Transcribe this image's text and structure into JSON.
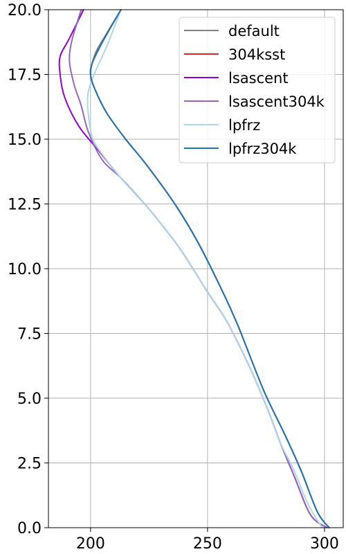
{
  "chart_data": {
    "type": "line",
    "title": "",
    "xlabel": "",
    "ylabel": "",
    "xlim": [
      182,
      308
    ],
    "ylim": [
      0,
      20
    ],
    "xticks": [
      200,
      250,
      300
    ],
    "yticks": [
      0.0,
      2.5,
      5.0,
      7.5,
      10.0,
      12.5,
      15.0,
      17.5,
      20.0
    ],
    "xtick_labels": [
      "200",
      "250",
      "300"
    ],
    "ytick_labels": [
      "0.0",
      "2.5",
      "5.0",
      "7.5",
      "10.0",
      "12.5",
      "15.0",
      "17.5",
      "20.0"
    ],
    "grid": true,
    "legend_position": "top-right",
    "series": [
      {
        "name": "default",
        "color": "#808080",
        "points": [
          [
            302,
            0
          ],
          [
            297,
            0.6
          ],
          [
            290,
            2.2
          ],
          [
            283,
            3.6
          ],
          [
            274,
            5.3
          ],
          [
            263,
            7.8
          ],
          [
            256,
            9.2
          ],
          [
            246,
            11.0
          ],
          [
            236,
            12.5
          ],
          [
            224,
            14.0
          ],
          [
            215,
            15.0
          ],
          [
            207,
            16.0
          ],
          [
            202,
            16.9
          ],
          [
            200,
            17.5
          ],
          [
            202,
            18.3
          ],
          [
            207,
            19.1
          ],
          [
            213,
            20.0
          ]
        ]
      },
      {
        "name": "304ksst",
        "color": "#d62728",
        "points": [
          [
            302,
            0
          ],
          [
            297,
            0.6
          ],
          [
            290,
            2.2
          ],
          [
            283,
            3.6
          ],
          [
            274,
            5.3
          ],
          [
            263,
            7.8
          ],
          [
            256,
            9.2
          ],
          [
            246,
            11.0
          ],
          [
            236,
            12.5
          ],
          [
            224,
            14.0
          ],
          [
            215,
            15.0
          ],
          [
            207,
            16.0
          ],
          [
            202,
            16.9
          ],
          [
            200,
            17.5
          ],
          [
            201,
            18.0
          ],
          [
            206,
            18.9
          ],
          [
            213,
            20.0
          ]
        ]
      },
      {
        "name": "lsascent",
        "color": "#9400D3",
        "points": [
          [
            301,
            0
          ],
          [
            294,
            0.5
          ],
          [
            287,
            2.0
          ],
          [
            281,
            3.3
          ],
          [
            276,
            4.5
          ],
          [
            268,
            6.2
          ],
          [
            258,
            8.0
          ],
          [
            250,
            9.1
          ],
          [
            238,
            10.8
          ],
          [
            225,
            12.3
          ],
          [
            213,
            13.5
          ],
          [
            204,
            14.5
          ],
          [
            195,
            15.5
          ],
          [
            189,
            16.6
          ],
          [
            187,
            17.5
          ],
          [
            187,
            18.2
          ],
          [
            191,
            18.9
          ],
          [
            197,
            20.0
          ]
        ]
      },
      {
        "name": "lsascent304k",
        "color": "#9467bd",
        "points": [
          [
            301,
            0
          ],
          [
            294,
            0.5
          ],
          [
            287,
            2.0
          ],
          [
            281,
            3.3
          ],
          [
            276,
            4.5
          ],
          [
            268,
            6.2
          ],
          [
            258,
            8.0
          ],
          [
            250,
            9.1
          ],
          [
            238,
            10.8
          ],
          [
            225,
            12.3
          ],
          [
            213,
            13.5
          ],
          [
            205,
            14.2
          ],
          [
            199,
            15.3
          ],
          [
            196,
            16.3
          ],
          [
            193,
            17.1
          ],
          [
            191,
            18.0
          ],
          [
            192,
            18.8
          ],
          [
            196,
            20.0
          ]
        ]
      },
      {
        "name": "lpfrz",
        "color": "#ADD8E6",
        "points": [
          [
            299,
            0
          ],
          [
            293,
            0.9
          ],
          [
            287,
            2.2
          ],
          [
            281,
            3.3
          ],
          [
            276,
            4.5
          ],
          [
            268,
            6.2
          ],
          [
            258,
            8.0
          ],
          [
            250,
            9.1
          ],
          [
            238,
            10.8
          ],
          [
            225,
            12.3
          ],
          [
            213,
            13.5
          ],
          [
            206,
            14.3
          ],
          [
            201,
            15.0
          ],
          [
            199,
            16.0
          ],
          [
            199,
            16.8
          ],
          [
            202,
            17.6
          ],
          [
            207,
            18.6
          ],
          [
            213,
            20.0
          ]
        ]
      },
      {
        "name": "lpfrz304k",
        "color": "#1f77b4",
        "points": [
          [
            302,
            0
          ],
          [
            297,
            0.6
          ],
          [
            290,
            2.2
          ],
          [
            283,
            3.6
          ],
          [
            274,
            5.3
          ],
          [
            263,
            7.8
          ],
          [
            256,
            9.2
          ],
          [
            246,
            11.0
          ],
          [
            236,
            12.5
          ],
          [
            224,
            14.0
          ],
          [
            215,
            15.0
          ],
          [
            207,
            16.0
          ],
          [
            202,
            16.9
          ],
          [
            200,
            17.5
          ],
          [
            201,
            18.0
          ],
          [
            206,
            18.9
          ],
          [
            213,
            20.0
          ]
        ]
      }
    ]
  }
}
